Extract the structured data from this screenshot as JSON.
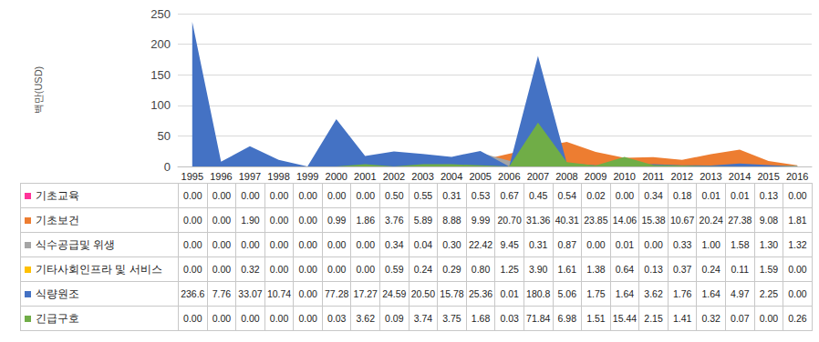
{
  "chart_data": {
    "type": "area",
    "y_label": "백만(USD)",
    "categories": [
      "1995",
      "1996",
      "1997",
      "1998",
      "1999",
      "2000",
      "2001",
      "2002",
      "2003",
      "2004",
      "2005",
      "2006",
      "2007",
      "2008",
      "2009",
      "2010",
      "2011",
      "2012",
      "2013",
      "2014",
      "2015",
      "2016"
    ],
    "ylim": [
      0,
      250
    ],
    "yticks": [
      0,
      50,
      100,
      150,
      200,
      250
    ],
    "grid": true,
    "series": [
      {
        "name": "기초교육",
        "color": "#ff3399",
        "values": [
          0,
          0,
          0,
          0,
          0,
          0,
          0,
          0.5,
          0.55,
          0.31,
          0.53,
          0.67,
          0.45,
          0.54,
          0.02,
          0,
          0.34,
          0.18,
          0.01,
          0.01,
          0.13,
          0
        ],
        "value_labels": [
          "0.00",
          "0.00",
          "0.00",
          "0.00",
          "0.00",
          "0.00",
          "0.00",
          "0.50",
          "0.55",
          "0.31",
          "0.53",
          "0.67",
          "0.45",
          "0.54",
          "0.02",
          "0.00",
          "0.34",
          "0.18",
          "0.01",
          "0.01",
          "0.13",
          "0.00"
        ]
      },
      {
        "name": "기초보건",
        "color": "#ed7d31",
        "values": [
          0,
          0,
          1.9,
          0,
          0,
          0.99,
          1.86,
          3.76,
          5.89,
          8.88,
          9.99,
          20.7,
          31.36,
          40.31,
          23.85,
          14.06,
          15.38,
          10.67,
          20.24,
          27.38,
          9.08,
          1.81
        ],
        "value_labels": [
          "0.00",
          "0.00",
          "1.90",
          "0.00",
          "0.00",
          "0.99",
          "1.86",
          "3.76",
          "5.89",
          "8.88",
          "9.99",
          "20.70",
          "31.36",
          "40.31",
          "23.85",
          "14.06",
          "15.38",
          "10.67",
          "20.24",
          "27.38",
          "9.08",
          "1.81"
        ]
      },
      {
        "name": "식수공급및 위생",
        "color": "#a5a5a5",
        "values": [
          0,
          0,
          0,
          0,
          0,
          0,
          0,
          0.34,
          0.04,
          0.3,
          22.42,
          9.45,
          0.31,
          0.87,
          0,
          0.01,
          0,
          0.33,
          1,
          1.58,
          1.3,
          1.32
        ],
        "value_labels": [
          "0.00",
          "0.00",
          "0.00",
          "0.00",
          "0.00",
          "0.00",
          "0.00",
          "0.34",
          "0.04",
          "0.30",
          "22.42",
          "9.45",
          "0.31",
          "0.87",
          "0.00",
          "0.01",
          "0.00",
          "0.33",
          "1.00",
          "1.58",
          "1.30",
          "1.32"
        ]
      },
      {
        "name": "기타사회인프라 및 서비스",
        "color": "#ffc000",
        "values": [
          0,
          0,
          0.32,
          0,
          0,
          0,
          0,
          0.59,
          0.24,
          0.29,
          0.8,
          1.25,
          3.9,
          1.61,
          1.38,
          0.64,
          0.13,
          0.37,
          0.24,
          0.11,
          1.59,
          0
        ],
        "value_labels": [
          "0.00",
          "0.00",
          "0.32",
          "0.00",
          "0.00",
          "0.00",
          "0.00",
          "0.59",
          "0.24",
          "0.29",
          "0.80",
          "1.25",
          "3.90",
          "1.61",
          "1.38",
          "0.64",
          "0.13",
          "0.37",
          "0.24",
          "0.11",
          "1.59",
          "0.00"
        ]
      },
      {
        "name": "식량원조",
        "color": "#4472c4",
        "values": [
          236.6,
          7.76,
          33.07,
          10.74,
          0,
          77.28,
          17.27,
          24.59,
          20.5,
          15.78,
          25.36,
          0.01,
          180.8,
          5.06,
          1.75,
          1.64,
          3.62,
          1.76,
          1.64,
          4.97,
          2.25,
          0
        ],
        "value_labels": [
          "236.6",
          "7.76",
          "33.07",
          "10.74",
          "0.00",
          "77.28",
          "17.27",
          "24.59",
          "20.50",
          "15.78",
          "25.36",
          "0.01",
          "180.8",
          "5.06",
          "1.75",
          "1.64",
          "3.62",
          "1.76",
          "1.64",
          "4.97",
          "2.25",
          "0.00"
        ]
      },
      {
        "name": "긴급구호",
        "color": "#70ad47",
        "values": [
          0,
          0,
          0,
          0,
          0,
          0.03,
          3.62,
          0.09,
          3.74,
          3.75,
          1.68,
          0.03,
          71.84,
          6.98,
          1.51,
          15.44,
          2.15,
          1.41,
          0.32,
          0.07,
          0,
          0.26
        ],
        "value_labels": [
          "0.00",
          "0.00",
          "0.00",
          "0.00",
          "0.00",
          "0.03",
          "3.62",
          "0.09",
          "3.74",
          "3.75",
          "1.68",
          "0.03",
          "71.84",
          "6.98",
          "1.51",
          "15.44",
          "2.15",
          "1.41",
          "0.32",
          "0.07",
          "0.00",
          "0.26"
        ]
      }
    ]
  }
}
